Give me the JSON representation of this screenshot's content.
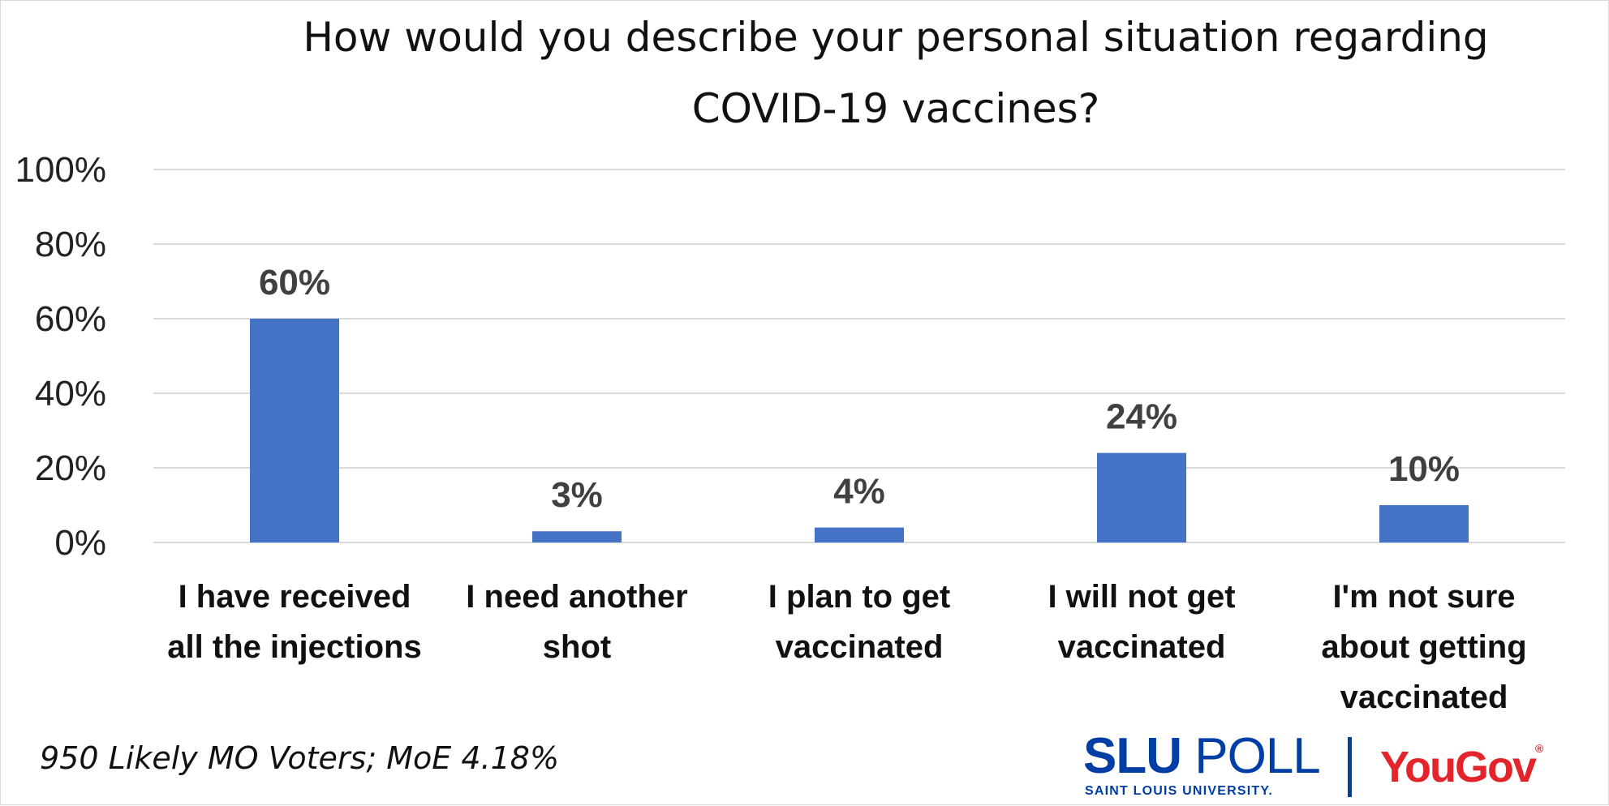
{
  "chart_data": {
    "type": "bar",
    "title": "How would you describe your personal situation regarding COVID-19 vaccines?",
    "title_lines": [
      "How would you describe your personal situation regarding",
      "COVID-19 vaccines?"
    ],
    "categories": [
      "I have received all the injections",
      "I need another shot",
      "I plan to get vaccinated",
      "I will not get vaccinated",
      "I'm not sure about getting vaccinated"
    ],
    "category_lines": [
      [
        "I have received",
        "all the injections"
      ],
      [
        "I need another",
        "shot"
      ],
      [
        "I plan to get",
        "vaccinated"
      ],
      [
        "I will not get",
        "vaccinated"
      ],
      [
        "I'm not sure",
        "about getting",
        "vaccinated"
      ]
    ],
    "values": [
      60,
      3,
      4,
      24,
      10
    ],
    "data_labels": [
      "60%",
      "3%",
      "4%",
      "24%",
      "10%"
    ],
    "y_ticks": [
      "0%",
      "20%",
      "40%",
      "60%",
      "80%",
      "100%"
    ],
    "ylim": [
      0,
      100
    ],
    "xlabel": "",
    "ylabel": "",
    "grid": true,
    "legend": "none",
    "bar_color": "#4472c4"
  },
  "footnote": "950 Likely MO Voters; MoE 4.18%",
  "logos": {
    "slu_bold": "SLU",
    "slu_light": "POLL",
    "slu_sub": "SAINT LOUIS UNIVERSITY.",
    "yougov": "YouGov",
    "yougov_mark": "®",
    "slu_color": "#003da5",
    "yougov_color": "#e3242b"
  }
}
